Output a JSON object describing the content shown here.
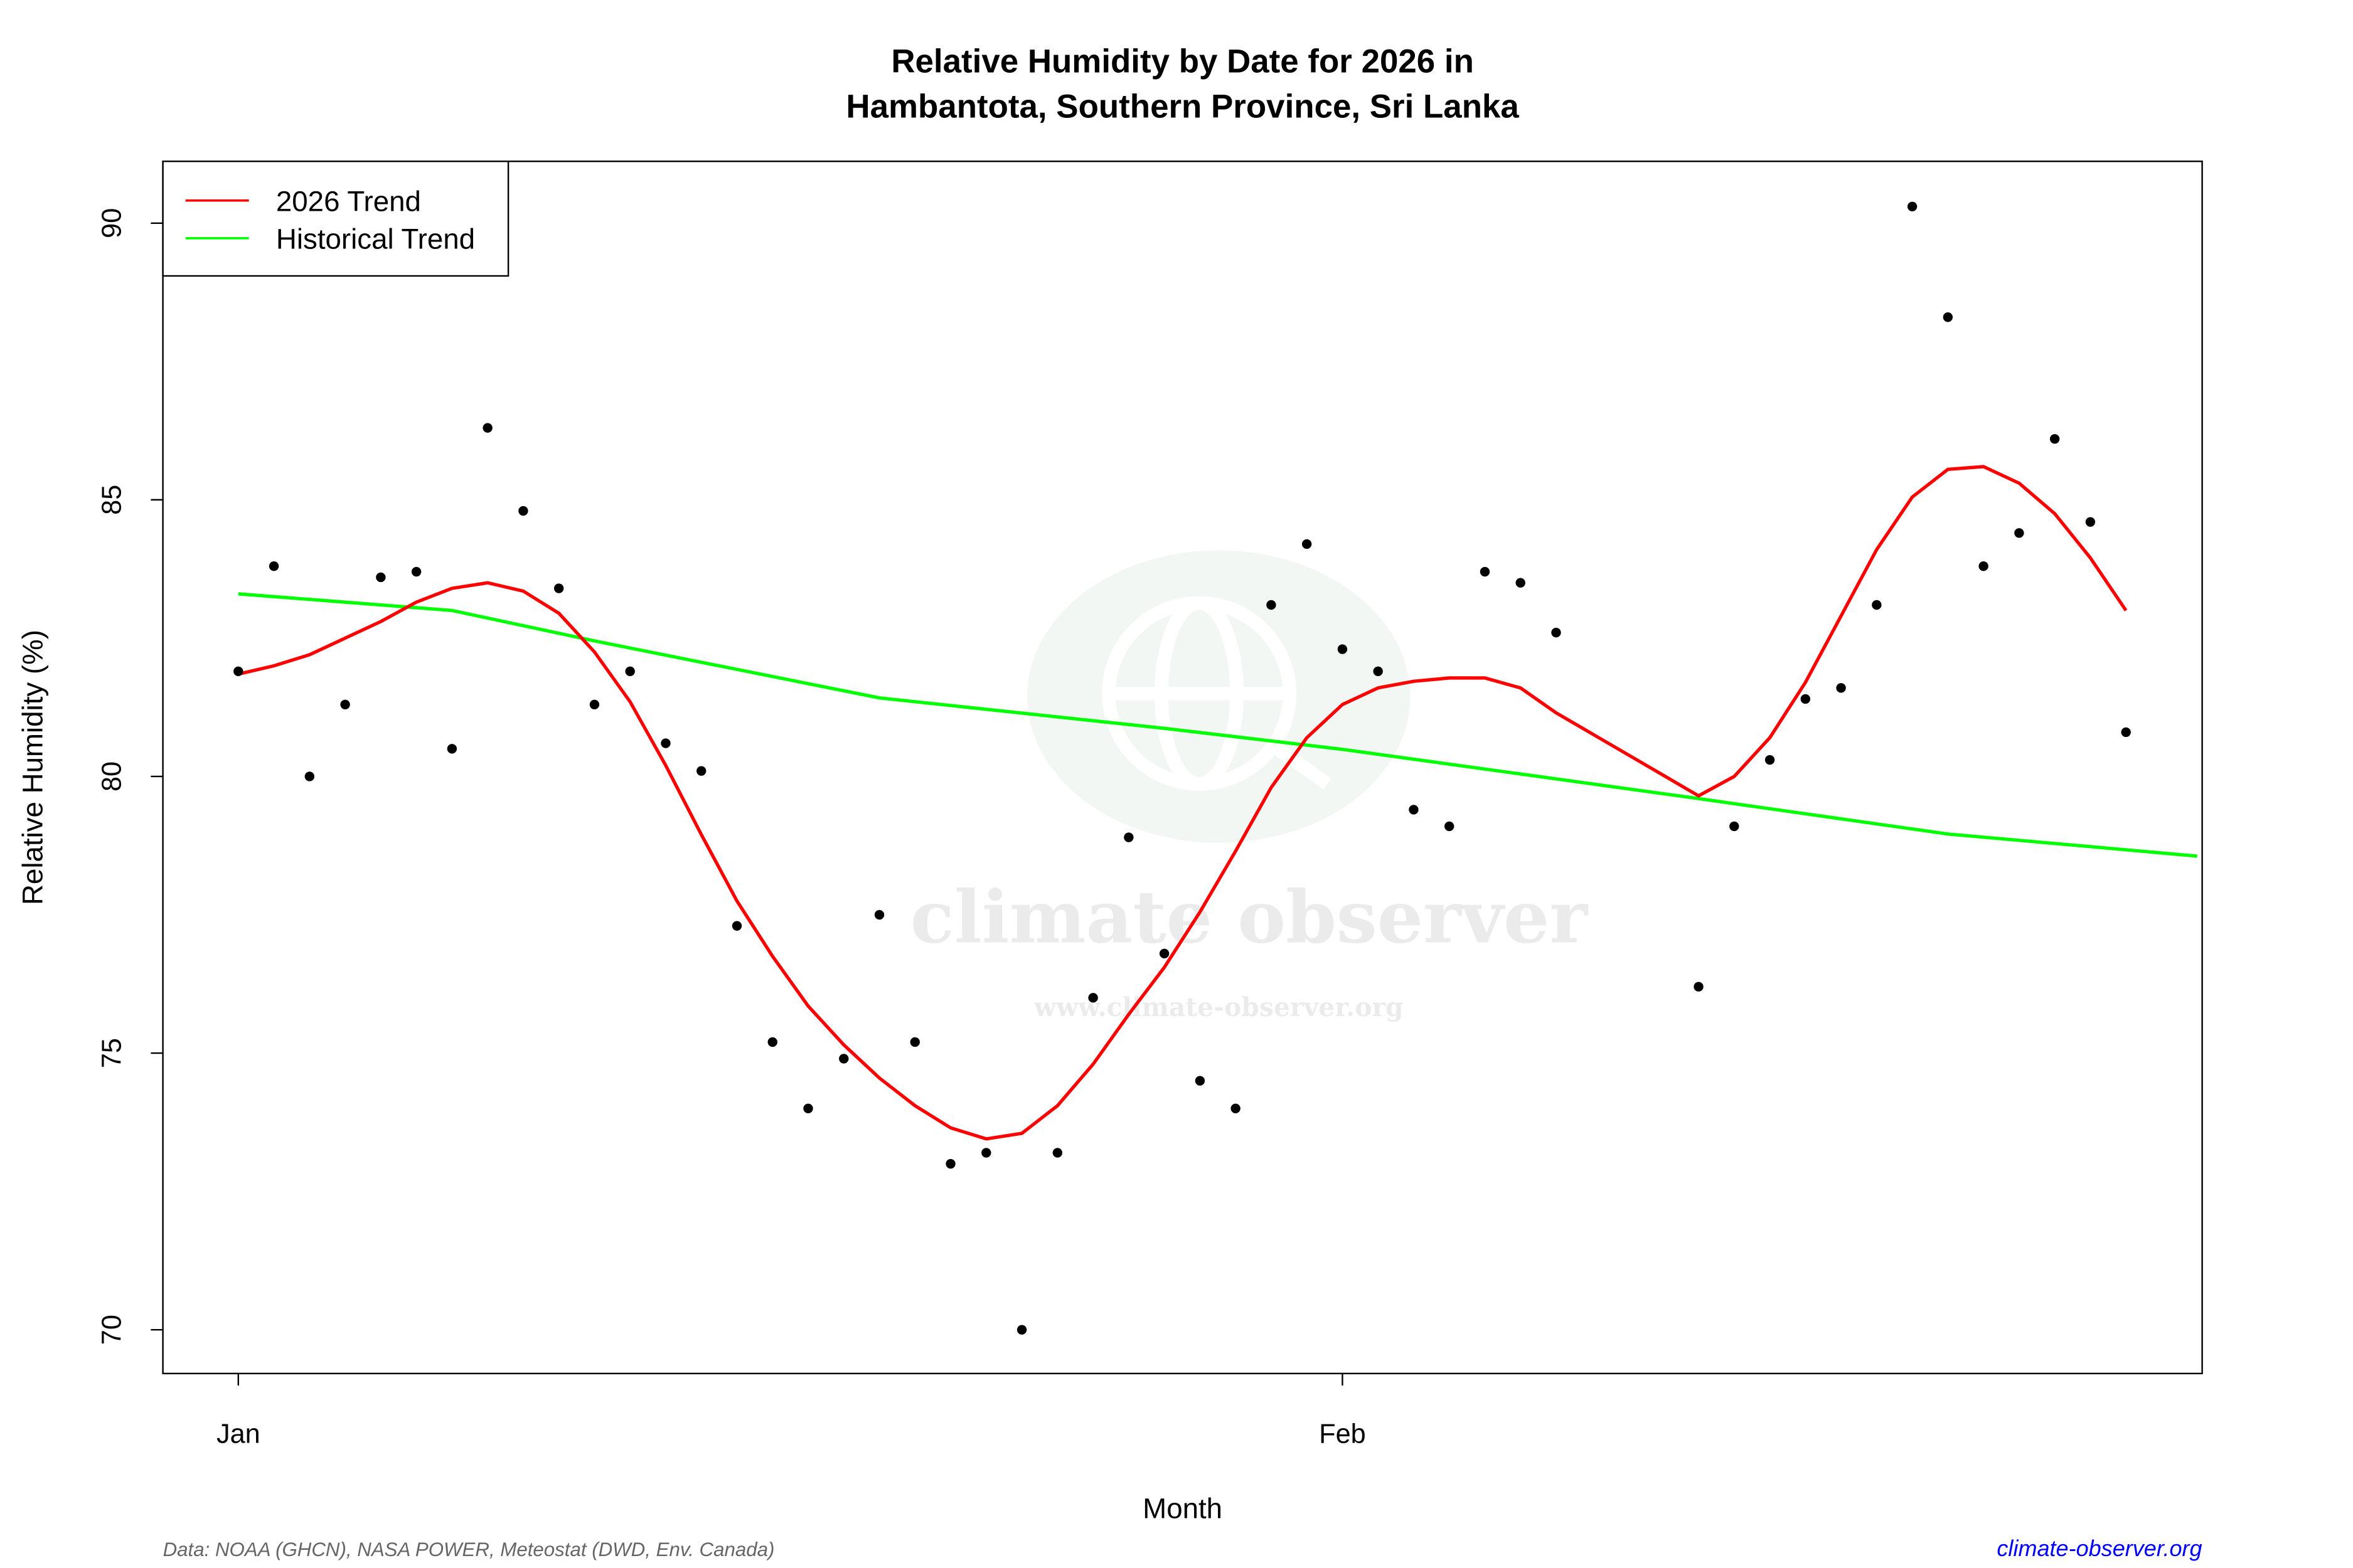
{
  "chart_data": {
    "type": "scatter",
    "title": "Relative Humidity by Date for 2026 in",
    "subtitle": "Hambantota, Southern Province, Sri Lanka",
    "xlabel": "Month",
    "ylabel": "Relative Humidity (%)",
    "xlim": [
      "2026-01-01",
      "2026-02-25"
    ],
    "ylim": [
      69.2,
      91.1
    ],
    "x_ticks": [
      {
        "date": "2026-01-01",
        "label": "Jan"
      },
      {
        "date": "2026-02-01",
        "label": "Feb"
      }
    ],
    "y_ticks": [
      70,
      75,
      80,
      85,
      90
    ],
    "grid": false,
    "legend": {
      "position": "top-left",
      "entries": [
        {
          "label": "2026 Trend",
          "color": "#ff0000"
        },
        {
          "label": "Historical Trend",
          "color": "#00ff00"
        }
      ]
    },
    "points": {
      "color": "#000000",
      "x": [
        "2026-01-01",
        "2026-01-02",
        "2026-01-03",
        "2026-01-04",
        "2026-01-05",
        "2026-01-06",
        "2026-01-07",
        "2026-01-08",
        "2026-01-09",
        "2026-01-10",
        "2026-01-11",
        "2026-01-12",
        "2026-01-13",
        "2026-01-14",
        "2026-01-15",
        "2026-01-16",
        "2026-01-17",
        "2026-01-18",
        "2026-01-19",
        "2026-01-20",
        "2026-01-21",
        "2026-01-22",
        "2026-01-23",
        "2026-01-24",
        "2026-01-25",
        "2026-01-26",
        "2026-01-27",
        "2026-01-28",
        "2026-01-29",
        "2026-01-30",
        "2026-01-31",
        "2026-02-01",
        "2026-02-02",
        "2026-02-03",
        "2026-02-04",
        "2026-02-05",
        "2026-02-06",
        "2026-02-07",
        "2026-02-11",
        "2026-02-12",
        "2026-02-13",
        "2026-02-14",
        "2026-02-15",
        "2026-02-16",
        "2026-02-17",
        "2026-02-18",
        "2026-02-19",
        "2026-02-20",
        "2026-02-21",
        "2026-02-22",
        "2026-02-23"
      ],
      "y": [
        81.9,
        83.8,
        80.0,
        81.3,
        83.6,
        83.7,
        80.5,
        86.3,
        84.8,
        83.4,
        81.3,
        81.9,
        80.6,
        80.1,
        77.3,
        75.2,
        74.0,
        74.9,
        77.5,
        75.2,
        73.0,
        73.2,
        70.0,
        73.2,
        76.0,
        78.9,
        76.8,
        74.5,
        74.0,
        83.1,
        84.2,
        82.3,
        81.9,
        79.4,
        79.1,
        83.7,
        83.5,
        82.6,
        76.2,
        79.1,
        80.3,
        81.4,
        81.6,
        83.1,
        90.3,
        88.3,
        83.8,
        84.4,
        86.1,
        84.6,
        80.8
      ]
    },
    "series": [
      {
        "name": "2026 Trend",
        "color": "#ff0000",
        "x": [
          "2026-01-01",
          "2026-01-02",
          "2026-01-03",
          "2026-01-04",
          "2026-01-05",
          "2026-01-06",
          "2026-01-07",
          "2026-01-08",
          "2026-01-09",
          "2026-01-10",
          "2026-01-11",
          "2026-01-12",
          "2026-01-13",
          "2026-01-14",
          "2026-01-15",
          "2026-01-16",
          "2026-01-17",
          "2026-01-18",
          "2026-01-19",
          "2026-01-20",
          "2026-01-21",
          "2026-01-22",
          "2026-01-23",
          "2026-01-24",
          "2026-01-25",
          "2026-01-26",
          "2026-01-27",
          "2026-01-28",
          "2026-01-29",
          "2026-01-30",
          "2026-01-31",
          "2026-02-01",
          "2026-02-02",
          "2026-02-03",
          "2026-02-04",
          "2026-02-05",
          "2026-02-06",
          "2026-02-07",
          "2026-02-11",
          "2026-02-12",
          "2026-02-13",
          "2026-02-14",
          "2026-02-15",
          "2026-02-16",
          "2026-02-17",
          "2026-02-18",
          "2026-02-19",
          "2026-02-20",
          "2026-02-21",
          "2026-02-22",
          "2026-02-23"
        ],
        "y": [
          81.85,
          82.0,
          82.2,
          82.5,
          82.8,
          83.15,
          83.4,
          83.5,
          83.35,
          82.95,
          82.25,
          81.35,
          80.2,
          78.95,
          77.75,
          76.75,
          75.85,
          75.15,
          74.55,
          74.05,
          73.65,
          73.45,
          73.55,
          74.05,
          74.8,
          75.7,
          76.55,
          77.55,
          78.65,
          79.8,
          80.7,
          81.3,
          81.6,
          81.72,
          81.78,
          81.78,
          81.6,
          81.15,
          79.65,
          80.0,
          80.7,
          81.7,
          82.9,
          84.1,
          85.05,
          85.55,
          85.6,
          85.3,
          84.75,
          83.95,
          83.0
        ]
      },
      {
        "name": "Historical Trend",
        "color": "#00ff00",
        "x": [
          "2026-01-01",
          "2026-01-07",
          "2026-01-11",
          "2026-01-19",
          "2026-01-27",
          "2026-02-01",
          "2026-02-11",
          "2026-02-18",
          "2026-02-25"
        ],
        "y": [
          83.3,
          83.0,
          82.45,
          81.42,
          80.87,
          80.49,
          79.6,
          78.96,
          78.56
        ]
      }
    ]
  },
  "watermark": {
    "name": "climate observer",
    "url": "www.climate-observer.org"
  },
  "footer": {
    "source": "Data: NOAA (GHCN), NASA POWER, Meteostat (DWD, Env. Canada)",
    "link": "climate-observer.org"
  }
}
